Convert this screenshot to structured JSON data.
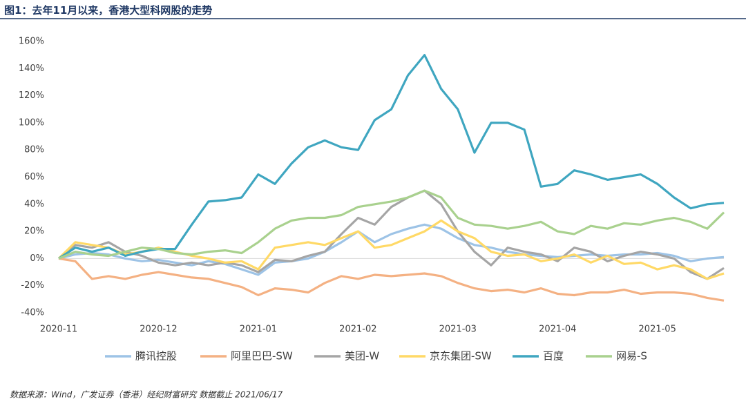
{
  "chart_data": {
    "type": "line",
    "title": "图1：去年11月以来，香港大型科网股的走势",
    "source": "数据来源：Wind，广发证券（香港）经纪财富研究   数据截止 2021/06/17",
    "categories": [
      "2020-11",
      null,
      null,
      null,
      null,
      null,
      "2020-12",
      null,
      null,
      null,
      null,
      null,
      "2021-01",
      null,
      null,
      null,
      null,
      null,
      "2021-02",
      null,
      null,
      null,
      null,
      null,
      "2021-03",
      null,
      null,
      null,
      null,
      null,
      "2021-04",
      null,
      null,
      null,
      null,
      null,
      "2021-05",
      null,
      null,
      null,
      null
    ],
    "ylim": [
      -40,
      160
    ],
    "yticks": [
      {
        "value": -40,
        "label": "-40%"
      },
      {
        "value": -20,
        "label": "-20%"
      },
      {
        "value": 0,
        "label": "0%"
      },
      {
        "value": 20,
        "label": "20%"
      },
      {
        "value": 40,
        "label": "40%"
      },
      {
        "value": 60,
        "label": "60%"
      },
      {
        "value": 80,
        "label": "80%"
      },
      {
        "value": 100,
        "label": "100%"
      },
      {
        "value": 120,
        "label": "120%"
      },
      {
        "value": 140,
        "label": "140%"
      },
      {
        "value": 160,
        "label": "160%"
      }
    ],
    "grid": false,
    "series": [
      {
        "name": "腾讯控股",
        "color": "#9dc3e6",
        "values": [
          0,
          3,
          4,
          3,
          0,
          -2,
          -1,
          -3,
          -5,
          -2,
          -4,
          -8,
          -12,
          -3,
          -2,
          0,
          5,
          12,
          20,
          12,
          18,
          22,
          25,
          22,
          15,
          10,
          8,
          5,
          3,
          2,
          1,
          2,
          3,
          2,
          3,
          3,
          4,
          2,
          -2,
          0,
          1
        ]
      },
      {
        "name": "阿里巴巴-SW",
        "color": "#f4b183",
        "values": [
          0,
          -2,
          -15,
          -13,
          -15,
          -12,
          -10,
          -12,
          -14,
          -15,
          -18,
          -21,
          -27,
          -22,
          -23,
          -25,
          -18,
          -13,
          -15,
          -12,
          -13,
          -12,
          -11,
          -13,
          -18,
          -22,
          -24,
          -23,
          -25,
          -22,
          -26,
          -27,
          -25,
          -25,
          -23,
          -26,
          -25,
          -25,
          -26,
          -29,
          -31
        ]
      },
      {
        "name": "美团-W",
        "color": "#a5a5a5",
        "values": [
          0,
          10,
          8,
          12,
          5,
          2,
          -3,
          -5,
          -3,
          -5,
          -3,
          -5,
          -10,
          -1,
          -2,
          2,
          5,
          18,
          30,
          25,
          38,
          45,
          50,
          40,
          20,
          5,
          -5,
          8,
          5,
          3,
          -2,
          8,
          5,
          -2,
          2,
          5,
          3,
          0,
          -10,
          -15,
          -7
        ]
      },
      {
        "name": "京东集团-SW",
        "color": "#ffd966",
        "values": [
          0,
          12,
          10,
          8,
          3,
          5,
          8,
          5,
          2,
          0,
          -3,
          -2,
          -8,
          8,
          10,
          12,
          10,
          15,
          20,
          8,
          10,
          15,
          20,
          28,
          20,
          15,
          5,
          2,
          3,
          -2,
          0,
          3,
          -3,
          2,
          -4,
          -3,
          -8,
          -5,
          -8,
          -15,
          -11
        ]
      },
      {
        "name": "百度",
        "color": "#3fa6c0",
        "values": [
          0,
          8,
          5,
          8,
          2,
          5,
          7,
          7,
          25,
          42,
          43,
          45,
          62,
          55,
          70,
          82,
          87,
          82,
          80,
          102,
          110,
          135,
          150,
          125,
          110,
          78,
          100,
          100,
          95,
          53,
          55,
          65,
          62,
          58,
          60,
          62,
          55,
          45,
          37,
          40,
          41
        ]
      },
      {
        "name": "网易-S",
        "color": "#a9d18e",
        "values": [
          0,
          5,
          3,
          2,
          5,
          8,
          7,
          4,
          3,
          5,
          6,
          4,
          12,
          22,
          28,
          30,
          30,
          32,
          38,
          40,
          42,
          45,
          50,
          45,
          30,
          25,
          24,
          22,
          24,
          27,
          20,
          18,
          24,
          22,
          26,
          25,
          28,
          30,
          27,
          22,
          34
        ]
      }
    ]
  }
}
